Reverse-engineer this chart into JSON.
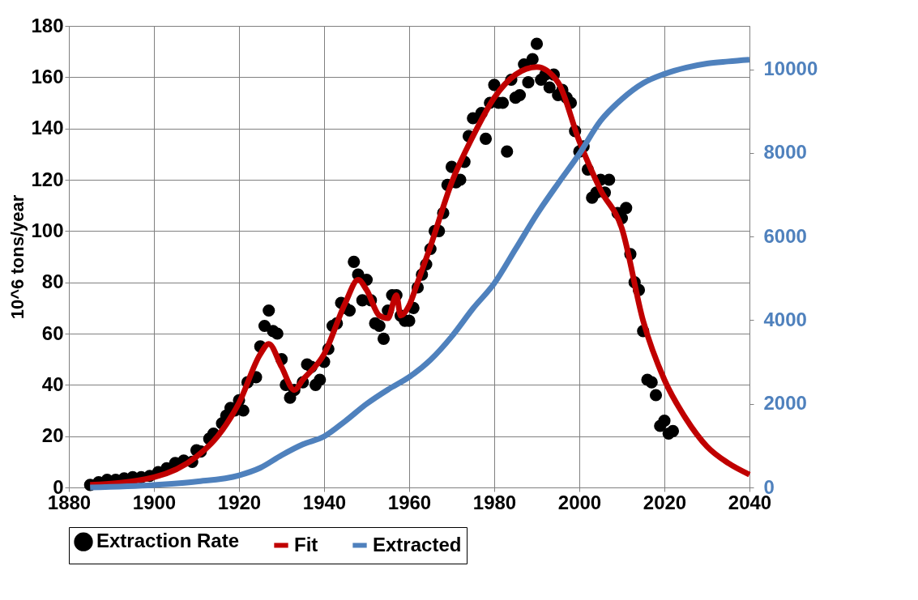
{
  "chart_data": {
    "type": "scatter",
    "ylabel": "10^6 tons/year",
    "xlim": [
      1880,
      2040
    ],
    "xticks": [
      1880,
      1900,
      1920,
      1940,
      1960,
      1980,
      2000,
      2020,
      2040
    ],
    "ylim": [
      0,
      180
    ],
    "yticks": [
      0,
      20,
      40,
      60,
      80,
      100,
      120,
      140,
      160,
      180
    ],
    "y2lim": [
      0,
      11040
    ],
    "y2ticks": [
      0,
      2000,
      4000,
      6000,
      8000,
      10000
    ],
    "grid": true,
    "legend": "bottom",
    "series": [
      {
        "name": "Extraction Rate",
        "marker": "circle",
        "color": "#000000",
        "x": [
          1885,
          1887,
          1889,
          1891,
          1893,
          1895,
          1897,
          1899,
          1901,
          1903,
          1905,
          1907,
          1909,
          1910,
          1911,
          1913,
          1914,
          1916,
          1917,
          1918,
          1919,
          1920,
          1921,
          1922,
          1924,
          1925,
          1926,
          1927,
          1928,
          1929,
          1930,
          1931,
          1932,
          1933,
          1935,
          1936,
          1937,
          1938,
          1939,
          1940,
          1941,
          1942,
          1943,
          1944,
          1945,
          1946,
          1947,
          1948,
          1949,
          1950,
          1951,
          1952,
          1953,
          1954,
          1955,
          1956,
          1957,
          1958,
          1959,
          1960,
          1961,
          1962,
          1963,
          1964,
          1965,
          1966,
          1967,
          1968,
          1969,
          1970,
          1971,
          1972,
          1973,
          1974,
          1975,
          1977,
          1978,
          1979,
          1980,
          1981,
          1982,
          1983,
          1984,
          1985,
          1986,
          1987,
          1988,
          1989,
          1990,
          1991,
          1992,
          1993,
          1994,
          1995,
          1996,
          1997,
          1998,
          1999,
          2000,
          2001,
          2002,
          2003,
          2004,
          2005,
          2006,
          2007,
          2009,
          2010,
          2011,
          2012,
          2013,
          2014,
          2015,
          2016,
          2017,
          2018,
          2019,
          2020,
          2021,
          2022
        ],
        "values": [
          1,
          2,
          3,
          3,
          3.5,
          4,
          4,
          4.5,
          6,
          7.5,
          9.5,
          10.5,
          10,
          14.5,
          14,
          19,
          21,
          25,
          28,
          31,
          30,
          34,
          30,
          41,
          43,
          55,
          63,
          69,
          61,
          60,
          50,
          40,
          35,
          38,
          41,
          48,
          47,
          40,
          42,
          49,
          54,
          63,
          64,
          72,
          70,
          69,
          88,
          83,
          73,
          81,
          73,
          64,
          63,
          58,
          69,
          75,
          75,
          67,
          65,
          65,
          70,
          78,
          83,
          87,
          93,
          100,
          100,
          107,
          118,
          125,
          119,
          120,
          127,
          137,
          144,
          146,
          136,
          150,
          157,
          150,
          150,
          131,
          159,
          152,
          153,
          165,
          158,
          167,
          173,
          159,
          161,
          156,
          161,
          153,
          155,
          152,
          150,
          139,
          131,
          133,
          124,
          113,
          115,
          120,
          115,
          120,
          107,
          105,
          109,
          91,
          80,
          77,
          61,
          42,
          41,
          36,
          24,
          26,
          21,
          22
        ]
      },
      {
        "name": "Fit",
        "type": "line",
        "color": "#c00000",
        "x": [
          1885,
          1900,
          1910,
          1915,
          1920,
          1925,
          1927,
          1930,
          1933,
          1935,
          1940,
          1945,
          1948,
          1950,
          1953,
          1955,
          1957,
          1958,
          1960,
          1962,
          1965,
          1970,
          1975,
          1980,
          1985,
          1990,
          1995,
          2000,
          2005,
          2010,
          2015,
          2020,
          2025,
          2030,
          2035,
          2040
        ],
        "values": [
          1,
          4,
          12,
          20,
          33,
          52,
          56,
          47,
          38,
          42,
          52,
          72,
          81,
          77,
          67,
          66,
          75,
          67,
          71,
          80,
          94,
          119,
          137,
          152,
          161,
          164,
          158,
          135,
          116,
          101,
          65,
          42,
          27,
          16,
          9.5,
          5
        ]
      },
      {
        "name": "Extracted",
        "type": "line",
        "axis": "y2",
        "color": "#4f81bd",
        "x": [
          1885,
          1900,
          1910,
          1920,
          1925,
          1930,
          1935,
          1940,
          1945,
          1950,
          1955,
          1960,
          1965,
          1970,
          1975,
          1980,
          1985,
          1990,
          1995,
          2000,
          2005,
          2010,
          2015,
          2020,
          2025,
          2030,
          2035,
          2040
        ],
        "values": [
          0,
          60,
          140,
          290,
          470,
          770,
          1030,
          1220,
          1590,
          2000,
          2340,
          2640,
          3050,
          3610,
          4280,
          4880,
          5700,
          6530,
          7270,
          7980,
          8770,
          9290,
          9670,
          9890,
          10040,
          10140,
          10190,
          10230
        ]
      }
    ]
  }
}
